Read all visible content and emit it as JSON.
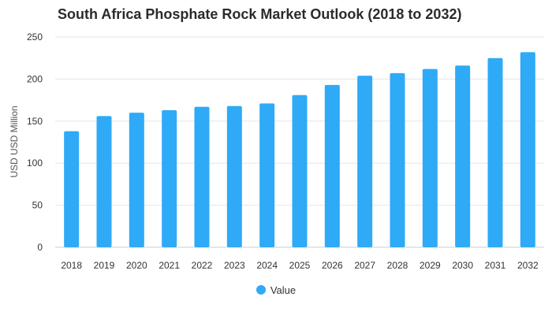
{
  "chart_data": {
    "type": "bar",
    "title": "South Africa Phosphate Rock Market Outlook (2018 to 2032)",
    "xlabel": "",
    "ylabel": "USD USD Million",
    "categories": [
      "2018",
      "2019",
      "2020",
      "2021",
      "2022",
      "2023",
      "2024",
      "2025",
      "2026",
      "2027",
      "2028",
      "2029",
      "2030",
      "2031",
      "2032"
    ],
    "series": [
      {
        "name": "Value",
        "values": [
          138,
          156,
          160,
          163,
          167,
          168,
          171,
          181,
          193,
          204,
          207,
          212,
          216,
          225,
          232
        ]
      }
    ],
    "ylim": [
      0,
      250
    ],
    "yticks": [
      0,
      50,
      100,
      150,
      200,
      250
    ],
    "grid": true,
    "legend_position": "bottom-center",
    "bar_color": "#2eaaf7"
  }
}
